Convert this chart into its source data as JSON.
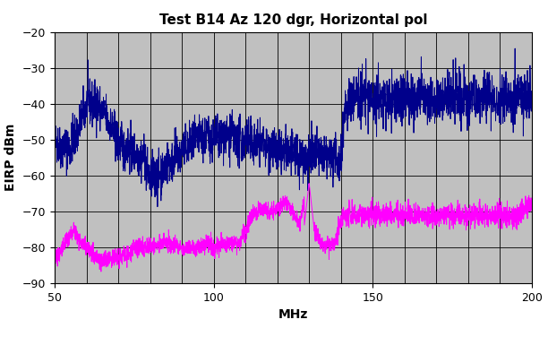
{
  "title": "Test B14 Az 120 dgr, Horizontal pol",
  "xlabel": "MHz",
  "ylabel": "EIRP dBm",
  "xlim": [
    50,
    200
  ],
  "ylim": [
    -90,
    -20
  ],
  "yticks": [
    -90,
    -80,
    -70,
    -60,
    -50,
    -40,
    -30,
    -20
  ],
  "xticks": [
    50,
    100,
    150,
    200
  ],
  "peak_color": "#00008B",
  "rms_color": "#FF00FF",
  "bg_color": "#C0C0C0",
  "grid_color": "#000000",
  "title_fontsize": 11,
  "label_fontsize": 10,
  "tick_fontsize": 9
}
